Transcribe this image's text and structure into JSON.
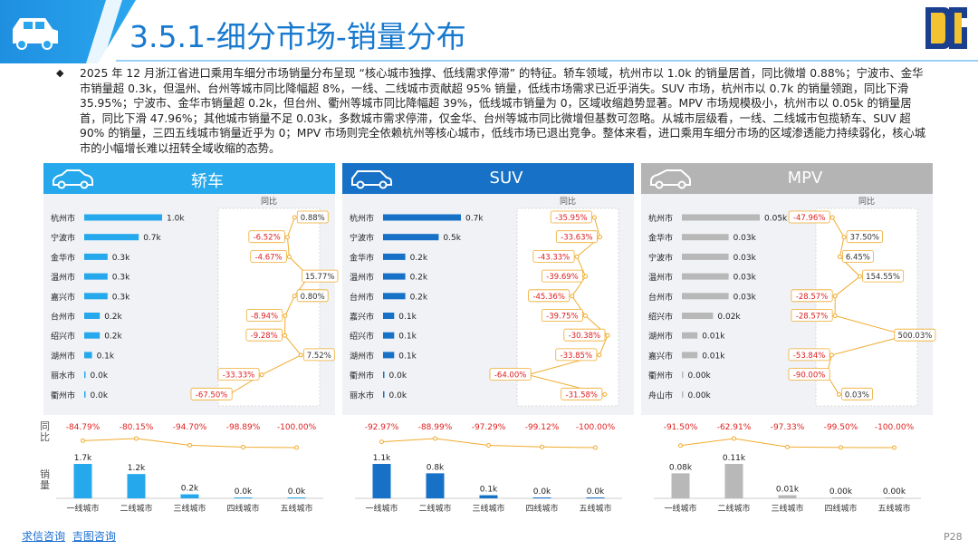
{
  "header": {
    "title": "3.5.1-细分市场-销量分布"
  },
  "intro_text": "2025 年 12 月浙江省进口乘用车细分市场销量分布呈现 “核心城市独撑、低线需求停滞” 的特征。轿车领域，杭州市以 1.0k 的销量居首，同比微增 0.88%；宁波市、金华市销量超 0.3k，但温州、台州等城市同比降幅超 8%，一线、二线城市贡献超 95% 销量，低线市场需求已近乎消失。SUV 市场，杭州市以 0.7k 的销量领跑，同比下滑 35.95%；宁波市、金华市销量超 0.2k，但台州、衢州等城市同比降幅超 39%，低线城市销量为 0，区域收缩趋势显著。MPV 市场规模极小，杭州市以 0.05k 的销量居首，同比下滑 47.96%；其他城市销量不足 0.03k，多数城市需求停滞，仅金华、台州等城市同比微增但基数可忽略。从城市层级看，一线、二线城市包揽轿车、SUV 超 90% 的销量，三四五线城市销量近乎为 0；MPV 市场则完全依赖杭州等核心城市，低线市场已退出竞争。整体来看，进口乘用车细分市场的区域渗透能力持续弱化，核心城市的小幅增长难以扭转全域收缩的态势。",
  "bullet_symbol": "◆",
  "panels": [
    {
      "title": "轿车",
      "icon": "sedan-icon",
      "color": "#25a8ec"
    },
    {
      "title": "SUV",
      "icon": "suv-icon",
      "color": "#1671c7"
    },
    {
      "title": "MPV",
      "icon": "mpv-icon",
      "color": "#b4b4b4"
    }
  ],
  "side_labels": {
    "yoy": "同比",
    "sales": "销量"
  },
  "footer": {
    "link1": "求信咨询",
    "link2": "吉图咨询",
    "page": "P28"
  },
  "colors": {
    "sedan": "#25a8ec",
    "suv": "#1671c7",
    "mpv": "#b8b8b8",
    "line": "#f0ab2e",
    "neg": "#e02020"
  },
  "chart_data": [
    {
      "type": "bar",
      "segment": "轿车",
      "categories": [
        "杭州市",
        "宁波市",
        "金华市",
        "温州市",
        "嘉兴市",
        "台州市",
        "绍兴市",
        "湖州市",
        "丽水市",
        "衢州市"
      ],
      "values": [
        1.0,
        0.7,
        0.3,
        0.3,
        0.3,
        0.2,
        0.2,
        0.1,
        0.0,
        0.0
      ],
      "value_labels": [
        "1.0k",
        "0.7k",
        "0.3k",
        "0.3k",
        "0.3k",
        "0.2k",
        "0.2k",
        "0.1k",
        "0.0k",
        "0.0k"
      ],
      "yoy_title": "同比",
      "yoy": [
        0.88,
        -6.52,
        -4.67,
        15.77,
        0.8,
        -8.94,
        -9.28,
        7.52,
        -33.33,
        -67.5
      ],
      "yoy_labels": [
        "0.88%",
        "-6.52%",
        "-4.67%",
        "15.77%",
        "0.80%",
        "-8.94%",
        "-9.28%",
        "7.52%",
        "-33.33%",
        "-67.50%"
      ]
    },
    {
      "type": "bar",
      "segment": "SUV",
      "categories": [
        "杭州市",
        "宁波市",
        "金华市",
        "温州市",
        "台州市",
        "嘉兴市",
        "绍兴市",
        "湖州市",
        "衢州市",
        "丽水市"
      ],
      "values": [
        0.7,
        0.5,
        0.2,
        0.2,
        0.2,
        0.1,
        0.1,
        0.1,
        0.0,
        0.0
      ],
      "value_labels": [
        "0.7k",
        "0.5k",
        "0.2k",
        "0.2k",
        "0.2k",
        "0.1k",
        "0.1k",
        "0.1k",
        "0.0k",
        "0.0k"
      ],
      "yoy_title": "同比",
      "yoy": [
        -35.95,
        -33.63,
        -43.33,
        -39.69,
        -45.36,
        -39.75,
        -30.38,
        -33.85,
        -64.0,
        -31.58
      ],
      "yoy_labels": [
        "-35.95%",
        "-33.63%",
        "-43.33%",
        "-39.69%",
        "-45.36%",
        "-39.75%",
        "-30.38%",
        "-33.85%",
        "-64.00%",
        "-31.58%"
      ]
    },
    {
      "type": "bar",
      "segment": "MPV",
      "categories": [
        "杭州市",
        "金华市",
        "宁波市",
        "温州市",
        "台州市",
        "绍兴市",
        "湖州市",
        "嘉兴市",
        "衢州市",
        "舟山市"
      ],
      "values": [
        0.05,
        0.03,
        0.03,
        0.03,
        0.03,
        0.02,
        0.01,
        0.01,
        0.0,
        0.0
      ],
      "value_labels": [
        "0.05k",
        "0.03k",
        "0.03k",
        "0.03k",
        "0.03k",
        "0.02k",
        "0.01k",
        "0.01k",
        "0.00k",
        "0.00k"
      ],
      "yoy_title": "同比",
      "yoy": [
        -47.96,
        37.5,
        6.45,
        154.55,
        -28.57,
        -28.57,
        500.03,
        -53.84,
        -90.0,
        0.03
      ],
      "yoy_labels": [
        "-47.96%",
        "37.50%",
        "6.45%",
        "154.55%",
        "-28.57%",
        "-28.57%",
        "500.03%",
        "-53.84%",
        "-90.00%",
        "0.03%"
      ]
    },
    {
      "type": "bar",
      "segment": "轿车-城市层级",
      "categories": [
        "一线城市",
        "二线城市",
        "三线城市",
        "四线城市",
        "五线城市"
      ],
      "values": [
        1.7,
        1.2,
        0.2,
        0.0,
        0.0
      ],
      "value_labels": [
        "1.7k",
        "1.2k",
        "0.2k",
        "0.0k",
        "0.0k"
      ],
      "yoy": [
        -84.79,
        -80.15,
        -94.7,
        -98.89,
        -100.0
      ],
      "yoy_labels": [
        "-84.79%",
        "-80.15%",
        "-94.70%",
        "-98.89%",
        "-100.00%"
      ]
    },
    {
      "type": "bar",
      "segment": "SUV-城市层级",
      "categories": [
        "一线城市",
        "二线城市",
        "三线城市",
        "四线城市",
        "五线城市"
      ],
      "values": [
        1.1,
        0.8,
        0.1,
        0.0,
        0.0
      ],
      "value_labels": [
        "1.1k",
        "0.8k",
        "0.1k",
        "0.0k",
        "0.0k"
      ],
      "yoy": [
        -92.97,
        -88.99,
        -97.29,
        -99.12,
        -100.0
      ],
      "yoy_labels": [
        "-92.97%",
        "-88.99%",
        "-97.29%",
        "-99.12%",
        "-100.00%"
      ]
    },
    {
      "type": "bar",
      "segment": "MPV-城市层级",
      "categories": [
        "一线城市",
        "二线城市",
        "三线城市",
        "四线城市",
        "五线城市"
      ],
      "values": [
        0.08,
        0.11,
        0.01,
        0.0,
        0.0
      ],
      "value_labels": [
        "0.08k",
        "0.11k",
        "0.01k",
        "0.00k",
        "0.00k"
      ],
      "yoy": [
        -91.5,
        -62.91,
        -97.33,
        -99.5,
        -100.0
      ],
      "yoy_labels": [
        "-91.50%",
        "-62.91%",
        "-97.33%",
        "-99.50%",
        "-100.00%"
      ]
    }
  ]
}
